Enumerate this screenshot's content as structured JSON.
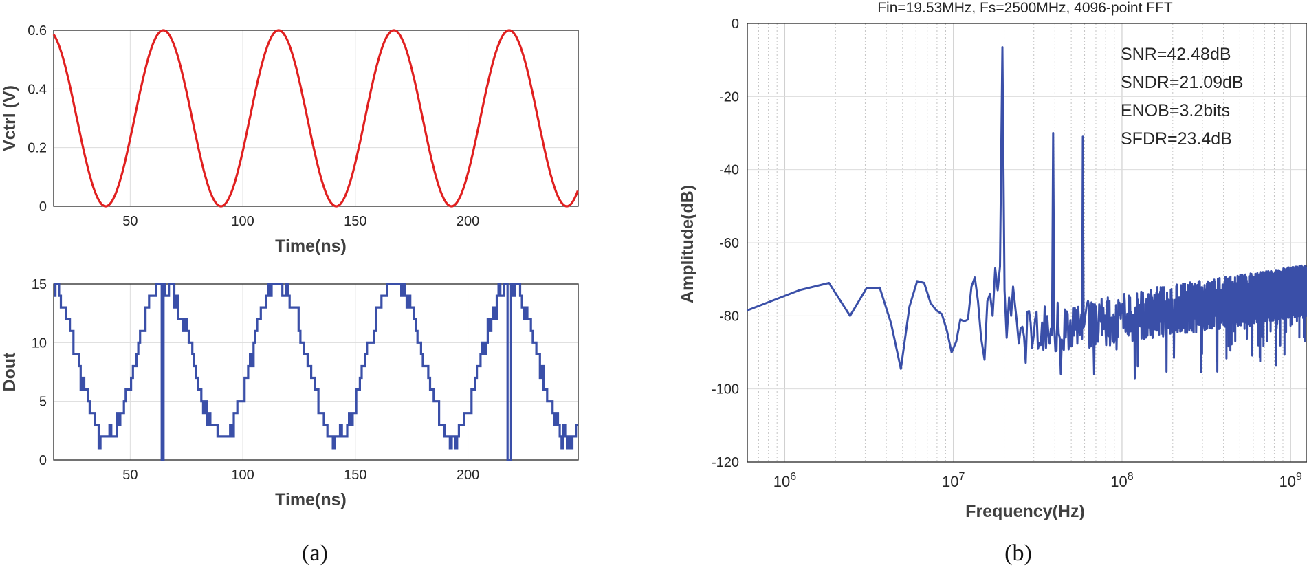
{
  "panel_a_caption": "(a)",
  "panel_b_caption": "(b)",
  "chart_data": [
    {
      "id": "vctrl",
      "type": "line",
      "title": "",
      "xlabel": "Time(ns)",
      "ylabel": "Vctrl (V)",
      "xlim": [
        16,
        249
      ],
      "ylim": [
        0,
        0.6
      ],
      "xticks": [
        50,
        100,
        150,
        200
      ],
      "yticks": [
        0,
        0.2,
        0.4,
        0.6
      ],
      "grid": true,
      "color": "#e02020",
      "signal": {
        "form": "cosine",
        "offset": 0.3,
        "amplitude": 0.3,
        "period_ns": 51.2,
        "peak_times_ns": [
          13.5,
          64.7,
          115.9,
          167.1,
          218.3
        ]
      },
      "series": [
        {
          "values": []
        }
      ]
    },
    {
      "id": "dout",
      "type": "line",
      "title": "",
      "xlabel": "Time(ns)",
      "ylabel": "Dout",
      "xlim": [
        16,
        249
      ],
      "ylim": [
        0,
        15
      ],
      "xticks": [
        50,
        100,
        150,
        200
      ],
      "yticks": [
        0,
        5,
        10,
        15
      ],
      "grid": true,
      "color": "#3a4fa8",
      "signal": {
        "form": "quantized cosine",
        "levels": [
          0,
          15
        ],
        "period_ns": 51.2,
        "peak_times_ns": [
          13.5,
          64.7,
          115.9,
          167.1,
          218.3
        ],
        "min_times_ns": [
          39.1,
          90.3,
          141.5,
          192.7,
          243.9
        ],
        "dip_to_zero_times_ns": [
          64,
          218
        ]
      },
      "series": [
        {
          "values": []
        }
      ]
    },
    {
      "id": "fft",
      "type": "line",
      "title": "Fin=19.53MHz, Fs=2500MHz, 4096-point FFT",
      "xlabel": "Frequency(Hz)",
      "ylabel": "Amplitude(dB)",
      "xscale": "log",
      "xlim": [
        600000,
        1250000000
      ],
      "ylim": [
        -120,
        0
      ],
      "yticks": [
        0,
        -20,
        -40,
        -60,
        -80,
        -100,
        -120
      ],
      "xticks": [
        {
          "base": "10",
          "exp": "6",
          "value": 1000000
        },
        {
          "base": "10",
          "exp": "7",
          "value": 10000000
        },
        {
          "base": "10",
          "exp": "8",
          "value": 100000000
        },
        {
          "base": "10",
          "exp": "9",
          "value": 1000000000
        }
      ],
      "grid": true,
      "color": "#3a4fa8",
      "annotations": [
        "SNR=42.48dB",
        "SNDR=21.09dB",
        "ENOB=3.2bits",
        "SFDR=23.4dB"
      ],
      "peaks": [
        {
          "freq_hz": 19530000,
          "db": -6.5
        },
        {
          "freq_hz": 39060000,
          "db": -30
        },
        {
          "freq_hz": 58590000,
          "db": -31
        }
      ],
      "low_freq_points": [
        [
          600000,
          -78.5
        ],
        [
          1220000,
          -73
        ],
        [
          1830000,
          -71
        ],
        [
          2440000,
          -80
        ],
        [
          3050000,
          -72.5
        ],
        [
          3660000,
          -72.3
        ],
        [
          4270000,
          -82
        ],
        [
          4880000,
          -94.5
        ],
        [
          5490000,
          -77.5
        ],
        [
          6100000,
          -70.5
        ],
        [
          6710000,
          -71
        ],
        [
          7320000,
          -76.5
        ],
        [
          7930000,
          -78.5
        ],
        [
          8540000,
          -79.5
        ],
        [
          9150000,
          -84
        ],
        [
          9760000,
          -90
        ],
        [
          10400000,
          -87
        ],
        [
          11000000,
          -81
        ],
        [
          11600000,
          -81.5
        ],
        [
          12200000,
          -81
        ],
        [
          12800000,
          -72
        ],
        [
          13400000,
          -69.5
        ],
        [
          14000000,
          -76
        ],
        [
          14600000,
          -86
        ],
        [
          15300000,
          -92
        ],
        [
          15900000,
          -76
        ],
        [
          16500000,
          -74
        ],
        [
          17100000,
          -80
        ],
        [
          17700000,
          -67
        ],
        [
          18300000,
          -73
        ],
        [
          18900000,
          -66.5
        ],
        [
          19530000,
          -6.5
        ],
        [
          20100000,
          -73
        ],
        [
          20700000,
          -86
        ],
        [
          21400000,
          -75
        ],
        [
          22000000,
          -80
        ],
        [
          22600000,
          -72
        ],
        [
          23200000,
          -77
        ]
      ],
      "noise_floor_db": {
        "low_hz_end": -78,
        "high_hz_start": -66,
        "spread_db": 14
      },
      "series": [
        {
          "values": []
        }
      ]
    }
  ]
}
